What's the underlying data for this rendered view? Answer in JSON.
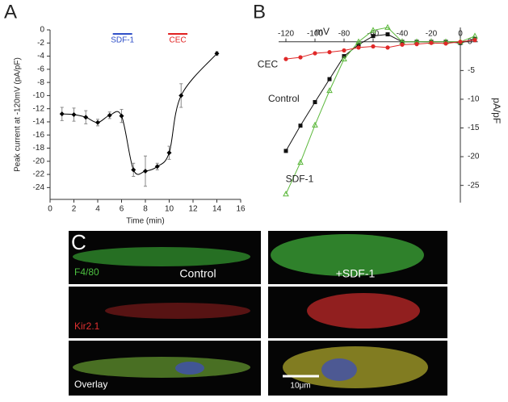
{
  "chart_data": [
    {
      "type": "line",
      "panel": "A",
      "xlabel": "Time (min)",
      "ylabel": "Peak current at -120mV (pA/pF)",
      "annotations": [
        {
          "text": "SDF-1",
          "color": "#3050c8"
        },
        {
          "text": "CEC",
          "color": "#e02020"
        }
      ],
      "xlim": [
        0,
        16
      ],
      "xticks": [
        0,
        2,
        4,
        6,
        8,
        10,
        12,
        14,
        16
      ],
      "ylim": [
        -25.8,
        0
      ],
      "yticks": [
        0,
        -2,
        -4,
        -6,
        -8,
        -10,
        -12,
        -14,
        -16,
        -18,
        -20,
        -22,
        -24
      ],
      "series": [
        {
          "color": "#000000",
          "marker": "diamond",
          "x": [
            1,
            2,
            3,
            4,
            5,
            6,
            7,
            8,
            9,
            10,
            11,
            14
          ],
          "values": [
            -12.8,
            -12.9,
            -13.3,
            -14.1,
            -13,
            -13.1,
            -21.3,
            -21.5,
            -20.8,
            -18.7,
            -10,
            -3.6
          ],
          "errors": [
            1,
            1,
            1,
            0.5,
            0.5,
            1,
            1,
            2.3,
            0.5,
            1,
            1.8,
            0.3
          ]
        }
      ]
    },
    {
      "type": "line",
      "panel": "B",
      "xlabel": "mV",
      "ylabel": "pA/pF",
      "xlim": [
        -125,
        12
      ],
      "xticks": [
        -120,
        -100,
        -80,
        -60,
        -40,
        -20,
        0
      ],
      "ylim": [
        -28,
        2.5
      ],
      "yticks": [
        0,
        -5,
        -10,
        -15,
        -20,
        -25
      ],
      "x": [
        -120,
        -110,
        -100,
        -90,
        -80,
        -70,
        -60,
        -50,
        -40,
        -30,
        -20,
        -10,
        0,
        10
      ],
      "series": [
        {
          "name": "Control",
          "color": "#111111",
          "marker": "square",
          "values": [
            -19,
            -14.6,
            -10.5,
            -6.5,
            -2.5,
            -0.5,
            1,
            1.3,
            0,
            0,
            0,
            0,
            -0.2,
            0.5
          ]
        },
        {
          "name": "SDF-1",
          "color": "#5cb83c",
          "marker": "triangle",
          "values": [
            -26.5,
            -21,
            -14.5,
            -8.5,
            -3,
            0,
            2,
            2.5,
            0,
            0,
            0,
            0,
            0,
            1
          ]
        },
        {
          "name": "CEC",
          "color": "#e02828",
          "marker": "circle",
          "values": [
            -3,
            -2.7,
            -2,
            -1.8,
            -1.5,
            -1,
            -0.8,
            -1,
            -0.5,
            -0.4,
            -0.2,
            -0.3,
            0,
            0.3
          ]
        }
      ]
    }
  ],
  "panel_c": {
    "label": "C",
    "columns": [
      "Control",
      "+SDF-1"
    ],
    "rows": [
      {
        "label": "F4/80",
        "color": "#4cc040"
      },
      {
        "label": "Kir2.1",
        "color": "#e03030"
      },
      {
        "label": "Overlay",
        "color": "#ffffff"
      }
    ],
    "scale_bar": "10μm"
  }
}
